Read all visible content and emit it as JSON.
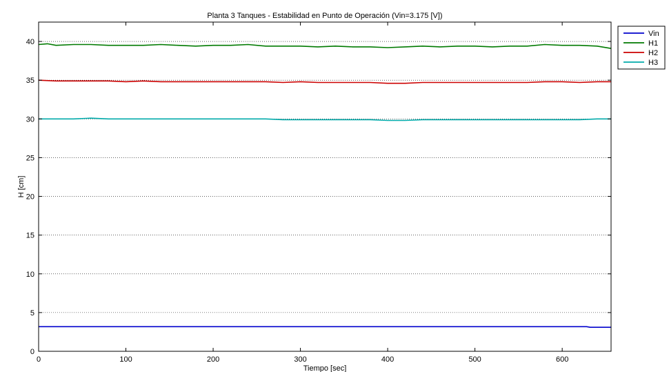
{
  "chart_data": {
    "type": "line",
    "title": "Planta 3 Tanques - Estabilidad en Punto de Operación (Vin=3.175 [V])",
    "xlabel": "Tiempo [sec]",
    "ylabel": "H [cm]",
    "xlim": [
      0,
      656
    ],
    "ylim": [
      0,
      42.5
    ],
    "x_ticks": [
      0,
      100,
      200,
      300,
      400,
      500,
      600
    ],
    "y_ticks": [
      0,
      5,
      10,
      15,
      20,
      25,
      30,
      35,
      40
    ],
    "grid": "horizontal-dotted",
    "legend_position": "outside-top-right",
    "series": [
      {
        "name": "Vin",
        "color": "#0000cc",
        "x": [
          0,
          100,
          200,
          300,
          400,
          500,
          600,
          628,
          632,
          656
        ],
        "y": [
          3.18,
          3.18,
          3.18,
          3.18,
          3.18,
          3.18,
          3.18,
          3.18,
          3.1,
          3.1
        ]
      },
      {
        "name": "H1",
        "color": "#007a00",
        "x": [
          0,
          10,
          20,
          40,
          60,
          80,
          100,
          120,
          140,
          160,
          180,
          200,
          220,
          240,
          260,
          280,
          300,
          320,
          340,
          360,
          380,
          400,
          420,
          440,
          460,
          480,
          500,
          520,
          540,
          560,
          580,
          600,
          620,
          640,
          656
        ],
        "y": [
          39.6,
          39.7,
          39.5,
          39.6,
          39.6,
          39.5,
          39.5,
          39.5,
          39.6,
          39.5,
          39.4,
          39.5,
          39.5,
          39.6,
          39.4,
          39.4,
          39.4,
          39.3,
          39.4,
          39.3,
          39.3,
          39.2,
          39.3,
          39.4,
          39.3,
          39.4,
          39.4,
          39.3,
          39.4,
          39.4,
          39.6,
          39.5,
          39.5,
          39.4,
          39.1
        ]
      },
      {
        "name": "H2",
        "color": "#cc0000",
        "x": [
          0,
          20,
          40,
          60,
          80,
          100,
          120,
          140,
          160,
          180,
          200,
          220,
          240,
          260,
          280,
          300,
          320,
          340,
          360,
          380,
          400,
          420,
          440,
          460,
          480,
          500,
          520,
          540,
          560,
          580,
          600,
          620,
          640,
          656
        ],
        "y": [
          35.0,
          34.9,
          34.9,
          34.9,
          34.9,
          34.8,
          34.9,
          34.8,
          34.8,
          34.8,
          34.8,
          34.8,
          34.8,
          34.8,
          34.7,
          34.8,
          34.7,
          34.7,
          34.7,
          34.7,
          34.6,
          34.6,
          34.7,
          34.7,
          34.7,
          34.7,
          34.7,
          34.7,
          34.7,
          34.8,
          34.8,
          34.7,
          34.8,
          34.8
        ]
      },
      {
        "name": "H3",
        "color": "#00aaaa",
        "x": [
          0,
          20,
          40,
          60,
          80,
          100,
          120,
          140,
          160,
          180,
          200,
          220,
          240,
          260,
          280,
          300,
          320,
          340,
          360,
          380,
          400,
          420,
          440,
          460,
          480,
          500,
          520,
          540,
          560,
          580,
          600,
          620,
          640,
          656
        ],
        "y": [
          30.0,
          30.0,
          30.0,
          30.1,
          30.0,
          30.0,
          30.0,
          30.0,
          30.0,
          30.0,
          30.0,
          30.0,
          30.0,
          30.0,
          29.9,
          29.9,
          29.9,
          29.9,
          29.9,
          29.9,
          29.8,
          29.8,
          29.9,
          29.9,
          29.9,
          29.9,
          29.9,
          29.9,
          29.9,
          29.9,
          29.9,
          29.9,
          30.0,
          30.0
        ]
      }
    ]
  }
}
